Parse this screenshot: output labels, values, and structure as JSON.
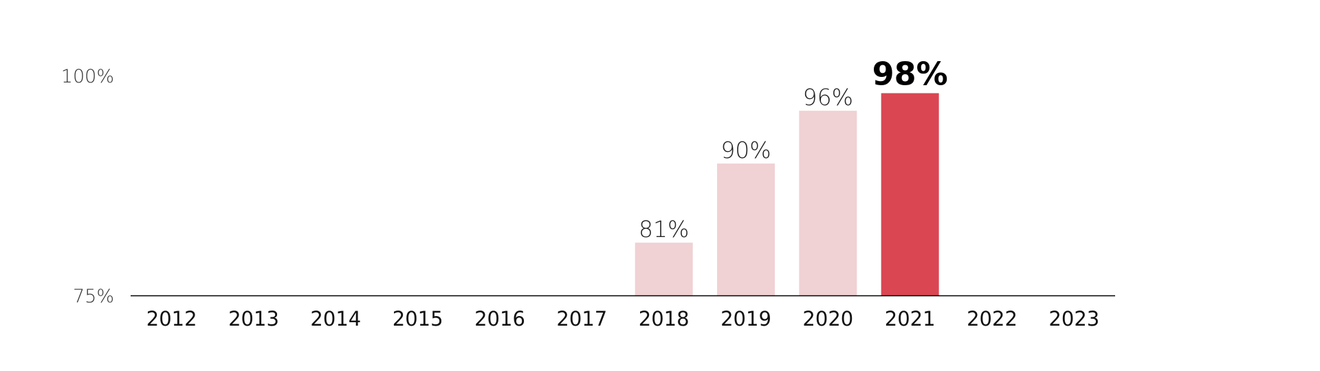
{
  "chart_data": {
    "type": "bar",
    "title": "",
    "xlabel": "",
    "ylabel": "",
    "categories": [
      "2012",
      "2013",
      "2014",
      "2015",
      "2016",
      "2017",
      "2018",
      "2019",
      "2020",
      "2021",
      "2022",
      "2023"
    ],
    "values": [
      null,
      null,
      null,
      null,
      null,
      null,
      81,
      90,
      96,
      98,
      null,
      null
    ],
    "data_labels": [
      "",
      "",
      "",
      "",
      "",
      "",
      "81%",
      "90%",
      "96%",
      "98%",
      "",
      ""
    ],
    "highlight_category": "2021",
    "ylim": [
      75,
      100
    ],
    "y_ticks": [
      {
        "value": 100,
        "label": "100%"
      },
      {
        "value": 75,
        "label": "75%"
      }
    ],
    "grid": false,
    "legend": "none",
    "colors": {
      "bar": "#f0d1d4",
      "highlight_bar": "#db4653",
      "baseline": "#000000"
    }
  }
}
